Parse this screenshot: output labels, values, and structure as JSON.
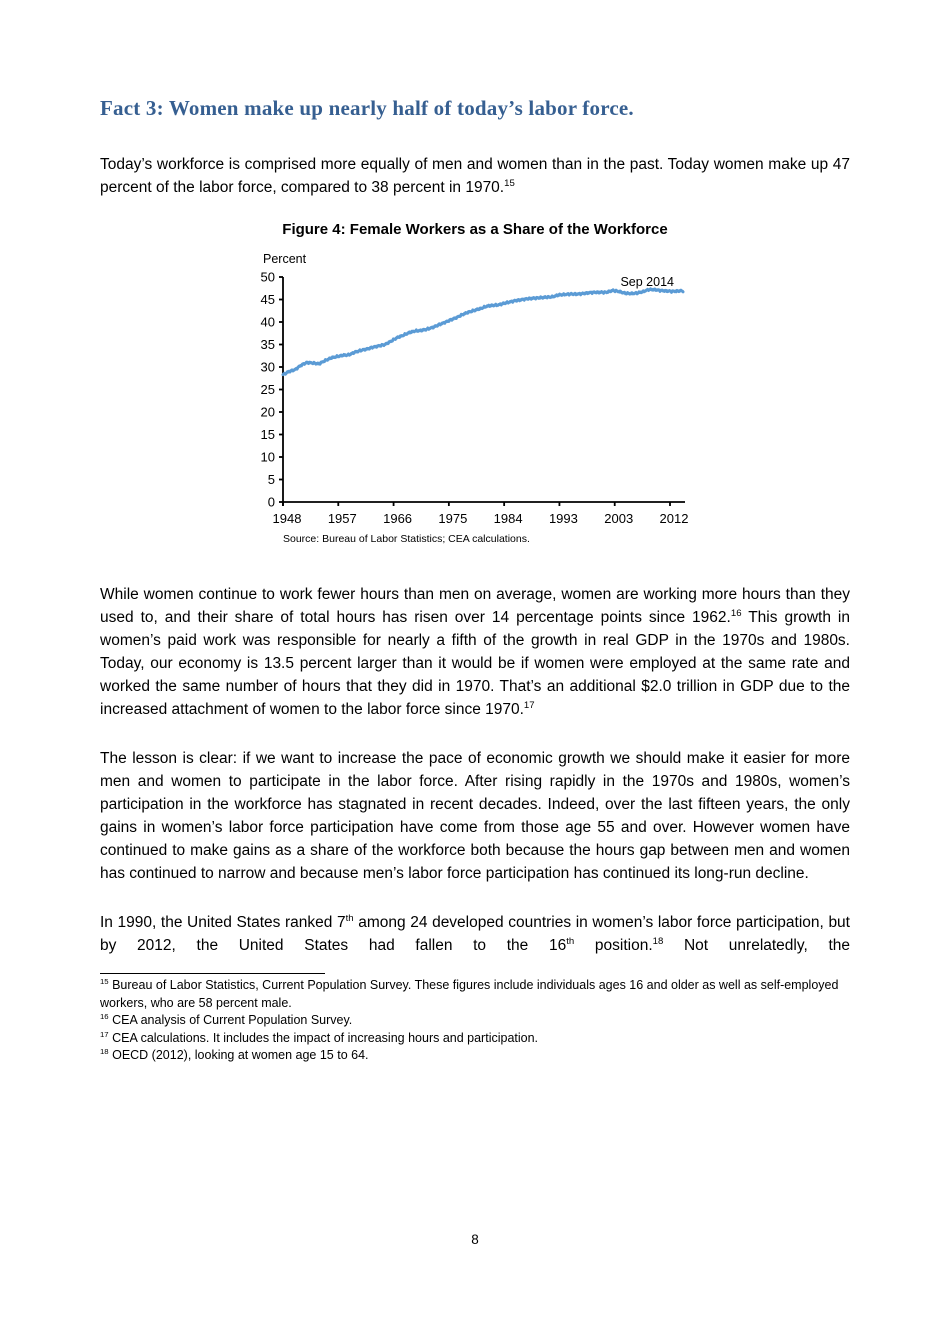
{
  "heading": "Fact 3: Women make up nearly half of today’s labor force.",
  "paragraphs": {
    "p1": [
      {
        "t": "Today’s workforce is comprised more equally of men and women than in the past. Today women make up 47 percent of the labor force, compared to 38 percent in 1970."
      },
      {
        "sup": "15"
      }
    ],
    "p2": [
      {
        "t": "While women continue to work fewer hours than men on average, women are working more hours than they used to, and their share of total hours has risen over 14 percentage points since 1962."
      },
      {
        "sup": "16"
      },
      {
        "t": " This growth in women’s paid work was responsible for nearly a fifth of the growth in real GDP in the 1970s and 1980s. Today, our economy is 13.5 percent larger than it would be if women were employed at the same rate and worked the same number of hours that they did in 1970. That’s an additional $2.0 trillion in GDP due to the increased attachment of women to the labor force since 1970."
      },
      {
        "sup": "17"
      }
    ],
    "p3": [
      {
        "t": "The lesson is clear: if we want to increase the pace of economic growth we should make it easier for more men and women to participate in the labor force. After rising rapidly in the 1970s and 1980s, women’s participation in the workforce has stagnated in recent decades. Indeed, over the last fifteen years, the only gains in women’s labor force participation have come from those age 55 and over. However women have continued to make gains as a share of the workforce both because the hours gap between men and women has continued to narrow and because men’s labor force participation has continued its long-run decline."
      }
    ],
    "p4": [
      {
        "t": "In 1990, the United States ranked 7"
      },
      {
        "sup": "th"
      },
      {
        "t": " among 24 developed countries in women’s labor force participation, but by 2012, the United States had fallen to the 16"
      },
      {
        "sup": "th"
      },
      {
        "t": " position."
      },
      {
        "sup": "18"
      },
      {
        "t": " Not unrelatedly, the"
      }
    ]
  },
  "footnotes": {
    "fn15": [
      {
        "sup": "15"
      },
      {
        "t": " Bureau of Labor Statistics, Current Population Survey. These figures include individuals ages 16 and older as well as self-employed workers, who are 58 percent male."
      }
    ],
    "fn16": [
      {
        "sup": "16"
      },
      {
        "t": " CEA analysis of Current Population Survey."
      }
    ],
    "fn17": [
      {
        "sup": "17"
      },
      {
        "t": " CEA calculations. It includes the impact of increasing hours and participation."
      }
    ],
    "fn18": [
      {
        "sup": "18"
      },
      {
        "t": " OECD (2012), looking at women age 15 to 64."
      }
    ]
  },
  "page_number": "8",
  "colors": {
    "heading": "#365F91",
    "line": "#5B9BD5",
    "axis": "#000000",
    "text": "#000000"
  },
  "chart_data": {
    "type": "line",
    "title": "Figure 4: Female Workers as a Share of the Workforce",
    "unit_label": "Percent",
    "annotation": "Sep 2014",
    "source": "Source: Bureau of Labor Statistics; CEA calculations.",
    "xlabel": "",
    "ylabel": "Percent",
    "ylim": [
      0,
      50
    ],
    "y_tick_step": 5,
    "x_tick_labels": [
      "1948",
      "1957",
      "1966",
      "1975",
      "1984",
      "1993",
      "2003",
      "2012"
    ],
    "x_range": [
      1948,
      2014.75
    ],
    "grid": false,
    "legend": false,
    "series": [
      {
        "name": "Female workers as a share of the workforce (percent)",
        "x": [
          1948,
          1949,
          1950,
          1951,
          1952,
          1953,
          1954,
          1955,
          1956,
          1957,
          1958,
          1959,
          1960,
          1961,
          1962,
          1963,
          1964,
          1965,
          1966,
          1967,
          1968,
          1969,
          1970,
          1971,
          1972,
          1973,
          1974,
          1975,
          1976,
          1977,
          1978,
          1979,
          1980,
          1981,
          1982,
          1983,
          1984,
          1985,
          1986,
          1987,
          1988,
          1989,
          1990,
          1991,
          1992,
          1993,
          1994,
          1995,
          1996,
          1997,
          1998,
          1999,
          2000,
          2001,
          2002,
          2003,
          2004,
          2005,
          2006,
          2007,
          2008,
          2009,
          2010,
          2011,
          2012,
          2013,
          2014,
          2014.75
        ],
        "values": [
          28.3,
          29.0,
          29.4,
          30.4,
          31.0,
          30.9,
          30.7,
          31.4,
          32.0,
          32.3,
          32.6,
          32.7,
          33.3,
          33.7,
          34.0,
          34.4,
          34.7,
          35.0,
          35.7,
          36.5,
          37.0,
          37.6,
          38.0,
          38.1,
          38.4,
          38.8,
          39.4,
          39.9,
          40.5,
          41.0,
          41.7,
          42.2,
          42.6,
          43.0,
          43.5,
          43.7,
          43.8,
          44.2,
          44.5,
          44.8,
          45.0,
          45.2,
          45.3,
          45.4,
          45.5,
          45.6,
          46.0,
          46.1,
          46.2,
          46.2,
          46.3,
          46.5,
          46.6,
          46.6,
          46.6,
          47.0,
          46.8,
          46.4,
          46.3,
          46.4,
          46.7,
          47.2,
          47.2,
          47.0,
          46.9,
          46.8,
          46.9,
          46.9
        ]
      }
    ]
  }
}
